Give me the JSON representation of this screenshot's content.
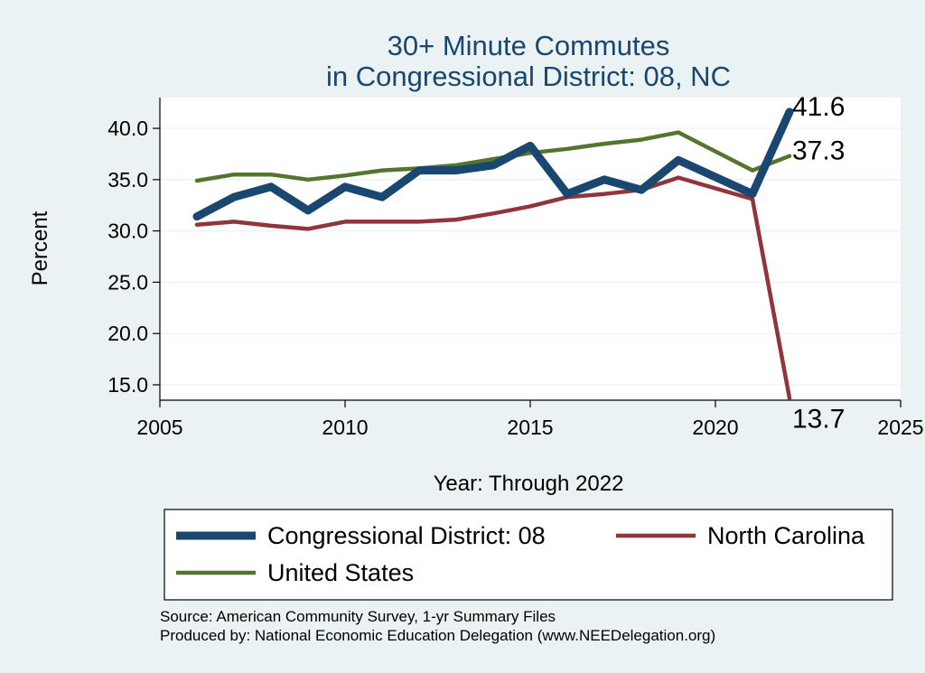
{
  "chart_data": {
    "type": "line",
    "title": "30+ Minute Commutes",
    "subtitle": "in Congressional District:  08, NC",
    "xlabel": "Year: Through 2022",
    "ylabel": "Percent",
    "xlim": [
      2005,
      2025
    ],
    "ylim": [
      13.5,
      43.0
    ],
    "x_ticks": [
      2005,
      2010,
      2015,
      2020,
      2025
    ],
    "y_ticks": [
      15.0,
      20.0,
      25.0,
      30.0,
      35.0,
      40.0
    ],
    "y_tick_labels": [
      "15.0",
      "20.0",
      "25.0",
      "30.0",
      "35.0",
      "40.0"
    ],
    "x": [
      2006,
      2007,
      2008,
      2009,
      2010,
      2011,
      2012,
      2013,
      2014,
      2015,
      2016,
      2017,
      2018,
      2019,
      2021,
      2022
    ],
    "series": [
      {
        "name": "Congressional District:  08",
        "color": "#1a476f",
        "values": [
          31.4,
          33.3,
          34.3,
          32.0,
          34.3,
          33.3,
          35.9,
          35.9,
          36.4,
          38.3,
          33.6,
          35.0,
          34.0,
          36.9,
          33.6,
          41.6
        ]
      },
      {
        "name": "North Carolina",
        "color": "#90353b",
        "values": [
          30.6,
          30.9,
          30.5,
          30.2,
          30.9,
          30.9,
          30.9,
          31.1,
          31.7,
          32.4,
          33.3,
          33.6,
          34.0,
          35.2,
          33.1,
          13.7
        ]
      },
      {
        "name": "United States",
        "color": "#55752f",
        "values": [
          34.9,
          35.5,
          35.5,
          35.0,
          35.4,
          35.9,
          36.1,
          36.4,
          37.0,
          37.6,
          38.0,
          38.5,
          38.9,
          39.6,
          35.9,
          37.3
        ]
      }
    ],
    "end_labels": [
      "41.6",
      "37.3",
      "13.7"
    ],
    "legend": {
      "position": "bottom",
      "items": [
        "Congressional District:  08",
        "North Carolina",
        "United States"
      ]
    },
    "notes": [
      "Source: American Community Survey, 1-yr Summary Files",
      "Produced by: National Economic Education Delegation (www.NEEDelegation.org)"
    ]
  }
}
